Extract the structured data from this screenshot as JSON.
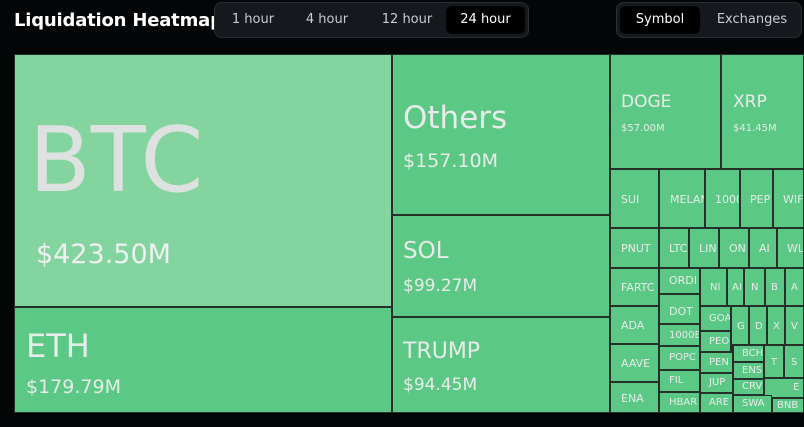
{
  "header": {
    "title": "Liquidation Heatmap",
    "time_tabs": [
      {
        "label": "1 hour",
        "active": false
      },
      {
        "label": "4 hour",
        "active": false
      },
      {
        "label": "12 hour",
        "active": false
      },
      {
        "label": "24 hour",
        "active": true
      }
    ],
    "view_tabs": [
      {
        "label": "Symbol",
        "active": true
      },
      {
        "label": "Exchanges",
        "active": false
      }
    ]
  },
  "heatmap": {
    "tiles": [
      {
        "symbol": "BTC",
        "value": "$423.50M"
      },
      {
        "symbol": "ETH",
        "value": "$179.79M"
      },
      {
        "symbol": "Others",
        "value": "$157.10M"
      },
      {
        "symbol": "SOL",
        "value": "$99.27M"
      },
      {
        "symbol": "TRUMP",
        "value": "$94.45M"
      },
      {
        "symbol": "DOGE",
        "value": "$57.00M"
      },
      {
        "symbol": "XRP",
        "value": "$41.45M"
      },
      {
        "symbol": "SUI"
      },
      {
        "symbol": "MELAN"
      },
      {
        "symbol": "1000"
      },
      {
        "symbol": "PEP"
      },
      {
        "symbol": "WIF"
      },
      {
        "symbol": "PNUT"
      },
      {
        "symbol": "LTC"
      },
      {
        "symbol": "LIN"
      },
      {
        "symbol": "ON"
      },
      {
        "symbol": "AI"
      },
      {
        "symbol": "WL"
      },
      {
        "symbol": "FARTC"
      },
      {
        "symbol": "ORDI"
      },
      {
        "symbol": "NI"
      },
      {
        "symbol": "AI"
      },
      {
        "symbol": "N"
      },
      {
        "symbol": "B"
      },
      {
        "symbol": "A"
      },
      {
        "symbol": "DOT"
      },
      {
        "symbol": "ADA"
      },
      {
        "symbol": "GOA"
      },
      {
        "symbol": "G"
      },
      {
        "symbol": "D"
      },
      {
        "symbol": "X"
      },
      {
        "symbol": "V"
      },
      {
        "symbol": "1000E"
      },
      {
        "symbol": "PEO"
      },
      {
        "symbol": "BCH"
      },
      {
        "symbol": "T"
      },
      {
        "symbol": "S"
      },
      {
        "symbol": "AAVE"
      },
      {
        "symbol": "POPC"
      },
      {
        "symbol": "PEN"
      },
      {
        "symbol": "ENS"
      },
      {
        "symbol": "FIL"
      },
      {
        "symbol": "JUP"
      },
      {
        "symbol": "CRV"
      },
      {
        "symbol": "E"
      },
      {
        "symbol": "ENA"
      },
      {
        "symbol": "HBAR"
      },
      {
        "symbol": "ARE"
      },
      {
        "symbol": "SWA"
      },
      {
        "symbol": "BNB"
      }
    ]
  }
}
